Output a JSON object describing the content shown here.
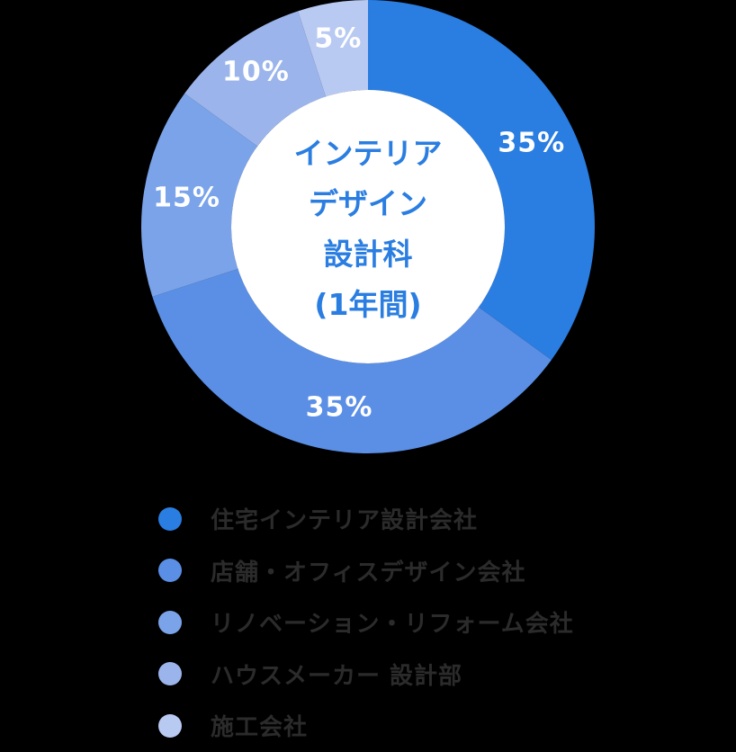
{
  "chart_data": {
    "type": "pie",
    "donut": true,
    "title": "インテリアデザイン設計科(1年間)",
    "center_label_lines": [
      "インテリア",
      "デザイン",
      "設計科",
      "(1年間)"
    ],
    "categories": [
      "住宅インテリア設計会社",
      "店舗・オフィスデザイン会社",
      "リノベーション・リフォーム会社",
      "ハウスメーカー 設計部",
      "施工会社"
    ],
    "values": [
      35,
      35,
      15,
      10,
      5
    ],
    "labels": [
      "35%",
      "35%",
      "15%",
      "10%",
      "5%"
    ],
    "colors": [
      "#2a7de1",
      "#5a8fe5",
      "#7aa3e9",
      "#9bb5ec",
      "#b8c9f2"
    ],
    "start_angle_deg": 0,
    "direction": "clockwise",
    "legend_position": "bottom"
  },
  "legend": {
    "items": [
      {
        "label": "住宅インテリア設計会社",
        "color": "#2a7de1"
      },
      {
        "label": "店舗・オフィスデザイン会社",
        "color": "#5a8fe5"
      },
      {
        "label": "リノベーション・リフォーム会社",
        "color": "#7aa3e9"
      },
      {
        "label": "ハウスメーカー 設計部",
        "color": "#9bb5ec"
      },
      {
        "label": "施工会社",
        "color": "#b8c9f2"
      }
    ]
  }
}
